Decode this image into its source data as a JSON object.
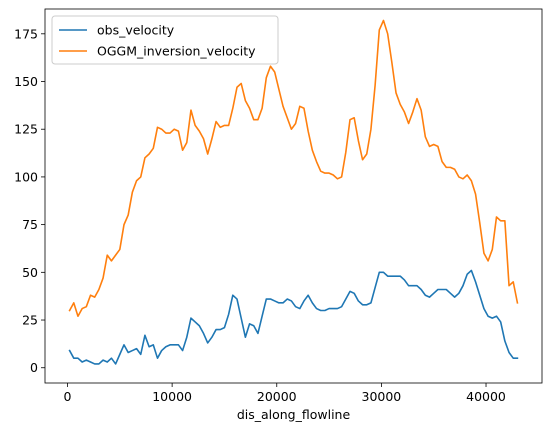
{
  "chart_data": {
    "type": "line",
    "title": "",
    "xlabel": "dis_along_flowline",
    "ylabel": "",
    "xlim": [
      -2150,
      45350
    ],
    "ylim": [
      -8,
      188
    ],
    "x_ticks": [
      0,
      10000,
      20000,
      30000,
      40000
    ],
    "x_tick_labels": [
      "0",
      "10000",
      "20000",
      "30000",
      "40000"
    ],
    "y_ticks": [
      0,
      25,
      50,
      75,
      100,
      125,
      150,
      175
    ],
    "y_tick_labels": [
      "0",
      "25",
      "50",
      "75",
      "100",
      "125",
      "150",
      "175"
    ],
    "grid": false,
    "legend": "top-left",
    "x": [
      200,
      600,
      1000,
      1400,
      1800,
      2200,
      2600,
      3000,
      3400,
      3800,
      4200,
      4600,
      5000,
      5400,
      5800,
      6200,
      6600,
      7000,
      7400,
      7800,
      8200,
      8600,
      9000,
      9400,
      9800,
      10200,
      10600,
      11000,
      11400,
      11800,
      12200,
      12600,
      13000,
      13400,
      13800,
      14200,
      14600,
      15000,
      15400,
      15800,
      16200,
      16600,
      17000,
      17400,
      17800,
      18200,
      18600,
      19000,
      19400,
      19800,
      20200,
      20600,
      21000,
      21400,
      21800,
      22200,
      22600,
      23000,
      23400,
      23800,
      24200,
      24600,
      25000,
      25400,
      25800,
      26200,
      26600,
      27000,
      27400,
      27800,
      28200,
      28600,
      29000,
      29400,
      29800,
      30200,
      30600,
      31000,
      31400,
      31800,
      32200,
      32600,
      33000,
      33400,
      33800,
      34200,
      34600,
      35000,
      35400,
      35800,
      36200,
      36600,
      37000,
      37400,
      37800,
      38200,
      38600,
      39000,
      39400,
      39800,
      40200,
      40600,
      41000,
      41400,
      41800,
      42200,
      42600,
      43000
    ],
    "series": [
      {
        "name": "obs_velocity",
        "color": "#1f77b4",
        "values": [
          9,
          5,
          5,
          3,
          4,
          3,
          2,
          2,
          4,
          3,
          5,
          2,
          7,
          12,
          8,
          9,
          10,
          7,
          17,
          11,
          12,
          5,
          9,
          11,
          12,
          12,
          12,
          9,
          16,
          26,
          24,
          22,
          18,
          13,
          16,
          20,
          20,
          21,
          28,
          38,
          36,
          26,
          16,
          23,
          22,
          18,
          27,
          36,
          36,
          35,
          34,
          34,
          36,
          35,
          32,
          31,
          35,
          38,
          34,
          31,
          30,
          30,
          31,
          31,
          31,
          32,
          36,
          40,
          39,
          35,
          33,
          33,
          34,
          42,
          50,
          50,
          48,
          48,
          48,
          48,
          46,
          43,
          43,
          43,
          41,
          38,
          37,
          39,
          41,
          41,
          41,
          39,
          37,
          39,
          43,
          49,
          51,
          45,
          38,
          31,
          27,
          26,
          27,
          24,
          14,
          8,
          5,
          5
        ]
      },
      {
        "name": "OGGM_inversion_velocity",
        "color": "#ff7f0e",
        "values": [
          30,
          34,
          27,
          31,
          32,
          38,
          37,
          41,
          47,
          59,
          56,
          59,
          62,
          75,
          80,
          92,
          98,
          100,
          110,
          112,
          115,
          126,
          125,
          123,
          123,
          125,
          124,
          114,
          118,
          135,
          127,
          124,
          120,
          112,
          120,
          129,
          126,
          127,
          127,
          136,
          147,
          149,
          140,
          136,
          130,
          130,
          136,
          152,
          158,
          155,
          146,
          137,
          131,
          125,
          128,
          137,
          136,
          124,
          114,
          108,
          103,
          102,
          102,
          101,
          99,
          100,
          113,
          130,
          131,
          119,
          109,
          112,
          125,
          148,
          177,
          182,
          175,
          160,
          144,
          138,
          134,
          128,
          134,
          141,
          135,
          121,
          116,
          117,
          116,
          108,
          105,
          105,
          104,
          100,
          99,
          101,
          98,
          91,
          76,
          60,
          56,
          62,
          79,
          77,
          77,
          43,
          45,
          34
        ]
      }
    ]
  }
}
